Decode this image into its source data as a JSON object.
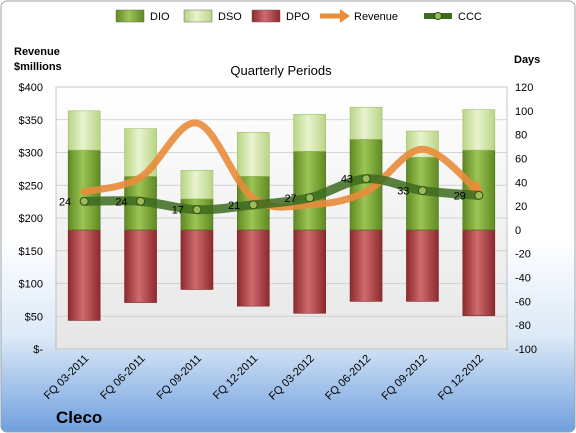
{
  "chart_data": {
    "type": "bar",
    "title": "Quarterly Periods",
    "company": "Cleco",
    "left_axis": {
      "label_lines": [
        "Revenue",
        "$millions"
      ],
      "min": 0,
      "max": 400,
      "step": 50,
      "tick_labels": [
        "$-",
        "$50",
        "$100",
        "$150",
        "$200",
        "$250",
        "$300",
        "$350",
        "$400"
      ]
    },
    "right_axis": {
      "label": "Days",
      "min": -100,
      "max": 120,
      "step": 20,
      "tick_labels": [
        "-100",
        "-80",
        "-60",
        "-40",
        "-20",
        "0",
        "20",
        "40",
        "60",
        "80",
        "100",
        "120"
      ]
    },
    "categories": [
      "FQ 03-2011",
      "FQ 06-2011",
      "FQ 09-2011",
      "FQ 12-2011",
      "FQ 03-2012",
      "FQ 06-2012",
      "FQ 09-2012",
      "FQ 12-2012"
    ],
    "series": [
      {
        "name": "DIO",
        "kind": "bar",
        "axis": "days",
        "color": "#7fa33a",
        "values": [
          67,
          45,
          26,
          45,
          66,
          76,
          61,
          67
        ]
      },
      {
        "name": "DSO",
        "kind": "bar",
        "axis": "days",
        "color": "#d4e6a8",
        "values": [
          33,
          40,
          24,
          37,
          31,
          27,
          22,
          34
        ]
      },
      {
        "name": "DPO",
        "kind": "bar",
        "axis": "days",
        "color": "#b44448",
        "values": [
          -76,
          -61,
          -50,
          -64,
          -70,
          -60,
          -60,
          -72
        ]
      },
      {
        "name": "Revenue",
        "kind": "line",
        "axis": "revenue",
        "color": "#e98b3a",
        "values": [
          240,
          262,
          345,
          230,
          220,
          240,
          305,
          240
        ]
      },
      {
        "name": "CCC",
        "kind": "line",
        "axis": "days",
        "color": "#3d6b1e",
        "values": [
          24,
          24,
          17,
          21,
          27,
          43,
          33,
          29
        ],
        "labels": [
          "24",
          "24",
          "17",
          "21",
          "27",
          "43",
          "33",
          "29"
        ]
      }
    ],
    "legend": {
      "position": "top",
      "items": [
        "DIO",
        "DSO",
        "DPO",
        "Revenue",
        "CCC"
      ]
    },
    "grid": true
  }
}
